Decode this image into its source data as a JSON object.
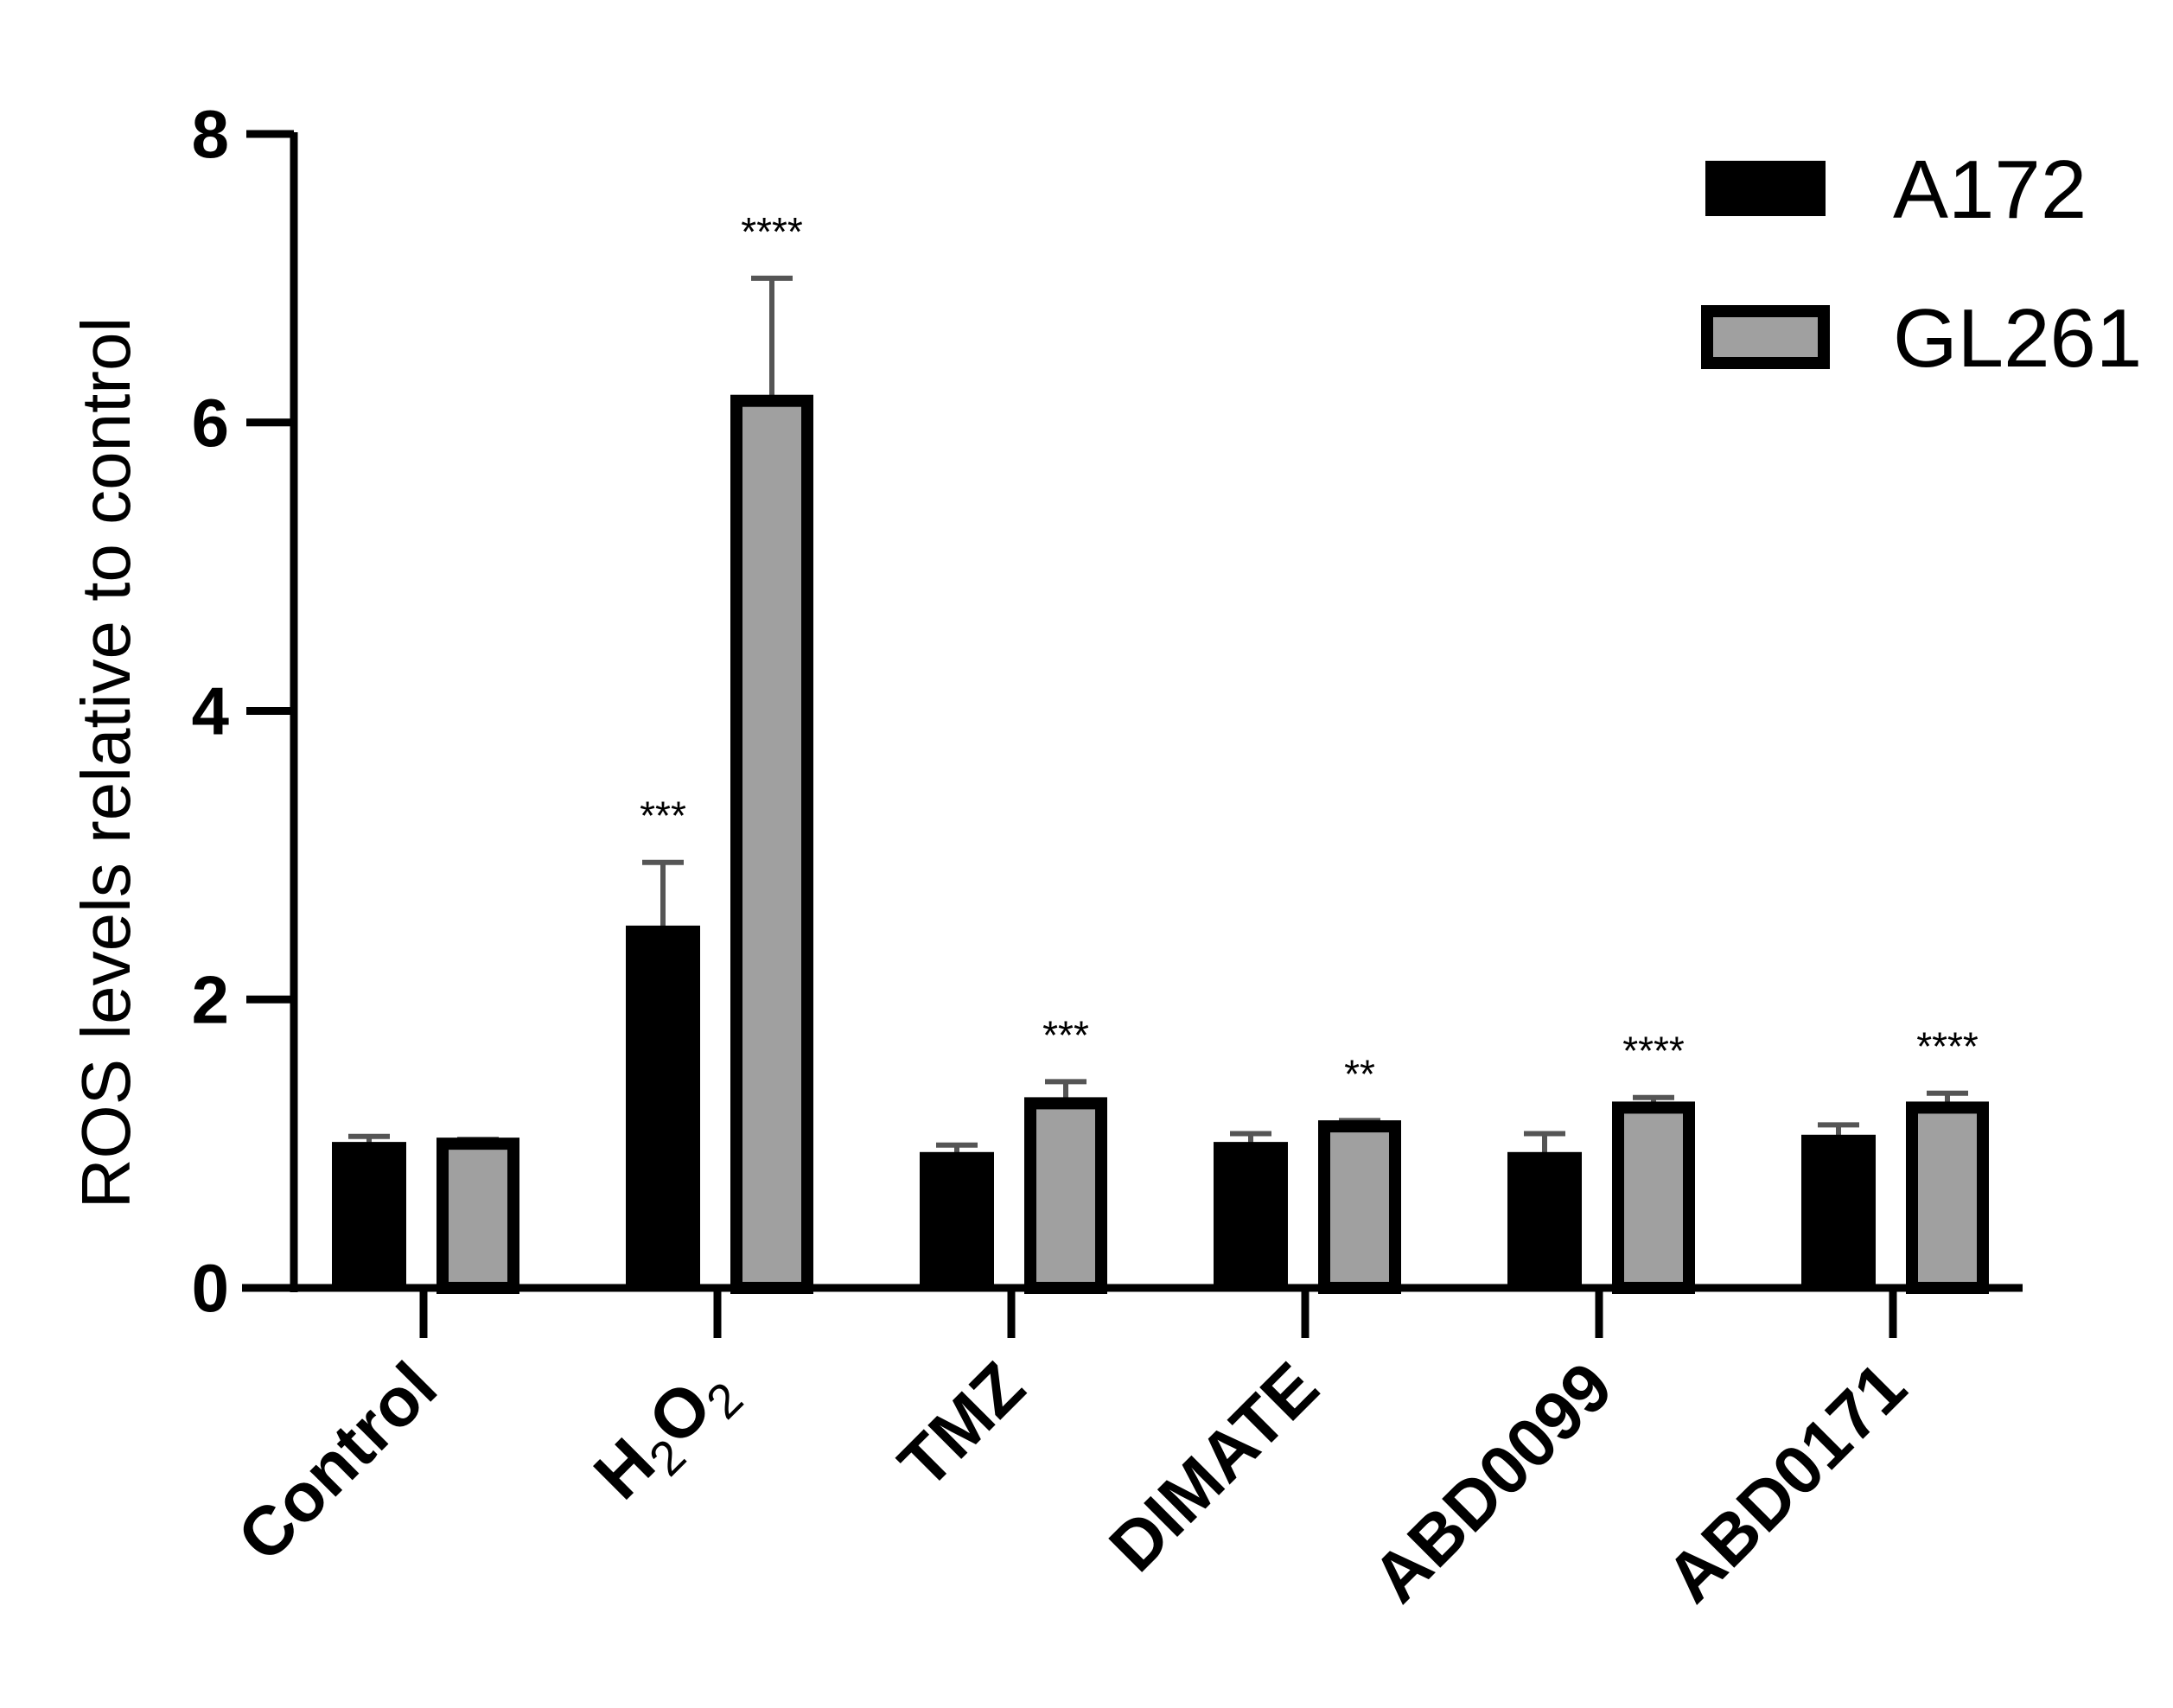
{
  "chart_data": {
    "type": "bar",
    "title": "",
    "xlabel": "",
    "ylabel": "ROS levels relative to control",
    "ylim": [
      0,
      8
    ],
    "yticks": [
      "0",
      "2",
      "4",
      "6",
      "8"
    ],
    "grid": false,
    "legend_position": "top-right",
    "categories": [
      {
        "label": "Control",
        "sub": ""
      },
      {
        "label": "H",
        "sub": "2",
        "label2": "O",
        "sub2": "2"
      },
      {
        "label": "TMZ",
        "sub": ""
      },
      {
        "label": "DIMATE",
        "sub": ""
      },
      {
        "label": "ABD0099",
        "sub": ""
      },
      {
        "label": "ABD0171",
        "sub": ""
      }
    ],
    "series": [
      {
        "name": "A172",
        "color": "#000000",
        "values": [
          1.0,
          2.5,
          0.93,
          1.0,
          0.93,
          1.05
        ],
        "errors": [
          0.05,
          0.45,
          0.06,
          0.07,
          0.14,
          0.08
        ],
        "significance": [
          "",
          "***",
          "",
          "",
          "",
          ""
        ]
      },
      {
        "name": "GL261",
        "color": "#a0a0a0",
        "values": [
          1.0,
          6.15,
          1.28,
          1.12,
          1.25,
          1.25
        ],
        "errors": [
          0.03,
          0.85,
          0.15,
          0.04,
          0.07,
          0.1
        ],
        "significance": [
          "",
          "****",
          "***",
          "**",
          "****",
          "****"
        ]
      }
    ]
  }
}
